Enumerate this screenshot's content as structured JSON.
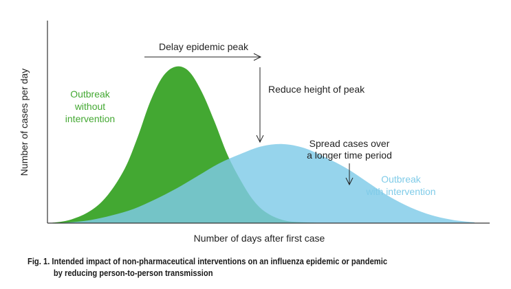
{
  "chart_data": {
    "type": "area",
    "xlabel": "Number of days after first case",
    "ylabel": "Number of cases per day",
    "x_ticks": "none",
    "y_ticks": "none",
    "xlim": [
      0,
      100
    ],
    "ylim": [
      0,
      100
    ],
    "series": [
      {
        "name": "Outbreak without intervention",
        "color": "#43a832",
        "opacity": 1.0,
        "x": [
          0,
          5,
          10,
          14,
          18,
          21,
          24,
          27,
          30,
          33,
          36,
          39,
          42,
          45,
          48,
          51,
          55,
          60,
          70
        ],
        "y": [
          0,
          2,
          8,
          18,
          35,
          55,
          78,
          94,
          100,
          97,
          84,
          65,
          44,
          28,
          15,
          7,
          2,
          0.5,
          0
        ]
      },
      {
        "name": "Outbreak with intervention",
        "color": "#7fcbe8",
        "opacity": 0.82,
        "x": [
          0,
          5,
          10,
          15,
          20,
          25,
          30,
          35,
          40,
          45,
          50,
          55,
          60,
          65,
          70,
          75,
          80,
          85,
          90,
          95,
          100
        ],
        "y": [
          0,
          0.5,
          2,
          5,
          9,
          15,
          22,
          30,
          38,
          44,
          49,
          50.5,
          48,
          42,
          35,
          26,
          17,
          10,
          5,
          2,
          0.5
        ]
      }
    ],
    "annotations": {
      "delay": "Delay epidemic peak",
      "reduce": "Reduce height of peak",
      "spread_1": "Spread cases over",
      "spread_2": "a longer time period",
      "label_without_1": "Outbreak",
      "label_without_2": "without",
      "label_without_3": "intervention",
      "label_with_1": "Outbreak",
      "label_with_2": "with intervention"
    }
  },
  "caption": {
    "line1": "Fig. 1. Intended impact of non-pharmaceutical interventions on an influenza epidemic or pandemic",
    "line2": "by reducing person-to-person transmission"
  }
}
